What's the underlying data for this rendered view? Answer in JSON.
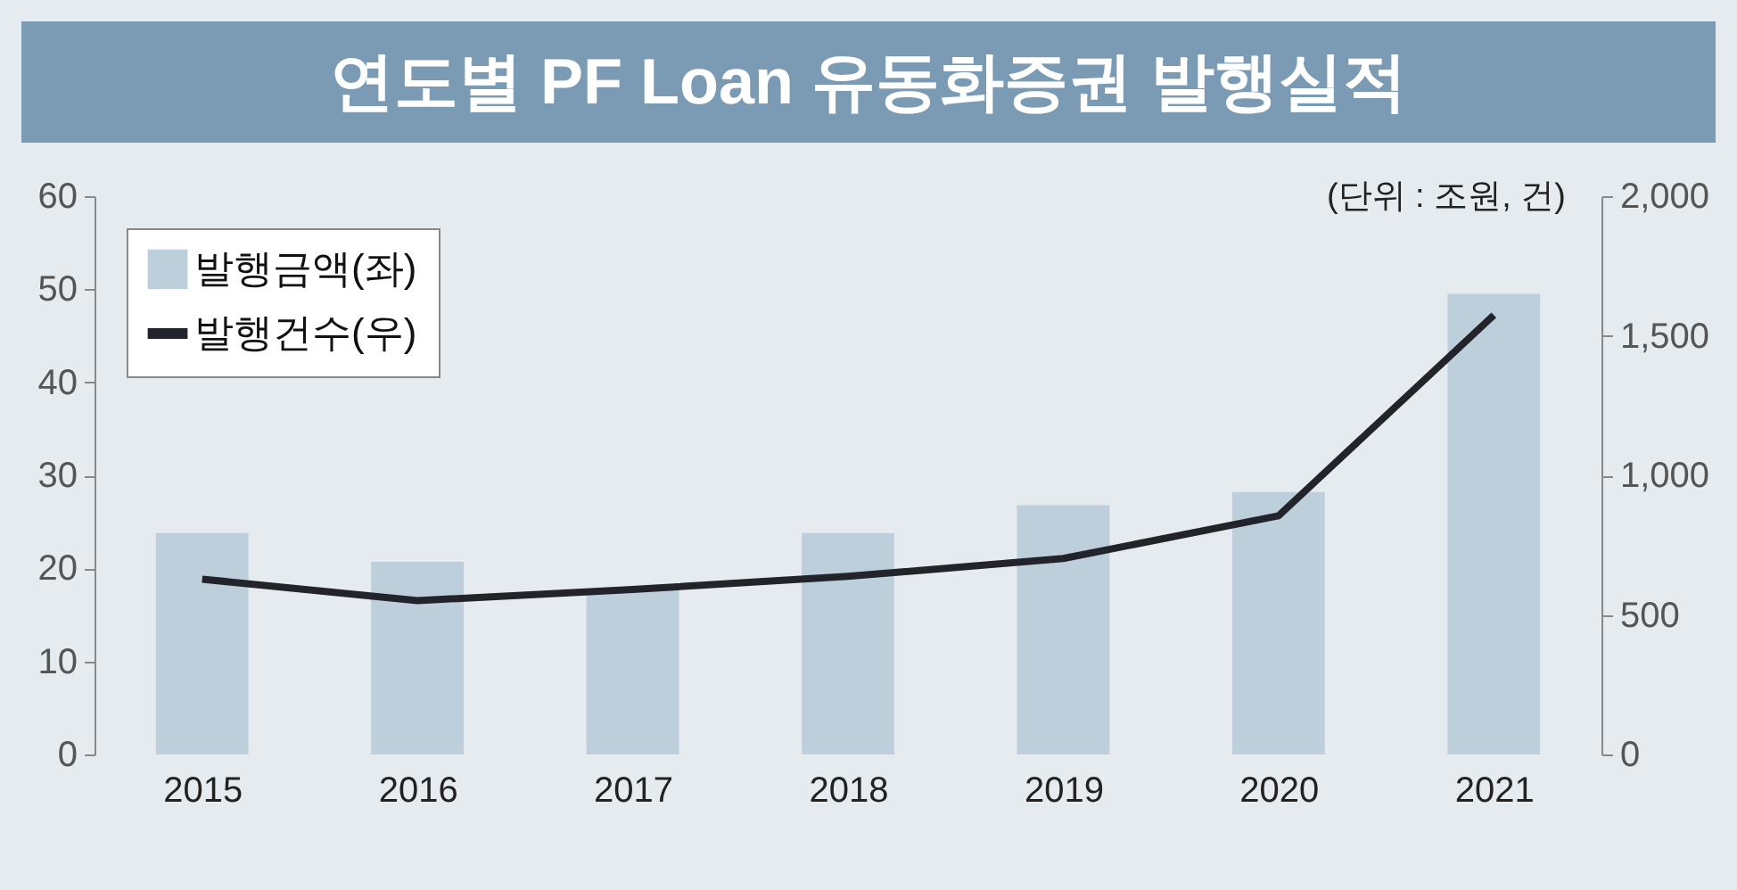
{
  "chart_data": {
    "type": "bar",
    "title": "연도별 PF Loan 유동화증권 발행실적",
    "annotations": [
      "(단위 : 조원, 건)"
    ],
    "categories": [
      "2015",
      "2016",
      "2017",
      "2018",
      "2019",
      "2020",
      "2021"
    ],
    "series": [
      {
        "name": "발행금액(좌)",
        "color": "#bccfda",
        "values": [
          23.8,
          20.7,
          17.7,
          23.8,
          26.8,
          28.2,
          49.5
        ]
      },
      {
        "name": "발행건수(우)",
        "type": "line",
        "axis": "y2",
        "color": "#22232b",
        "values": [
          628,
          551,
          591,
          638,
          702,
          855,
          1574
        ]
      }
    ],
    "ylim": [
      0,
      60
    ],
    "yticks": [
      0,
      10,
      20,
      30,
      40,
      50,
      60
    ],
    "y2lim": [
      0,
      2000
    ],
    "y2ticks": [
      0,
      500,
      {
        "value": 1000,
        "label": "1,000"
      },
      {
        "value": 1500,
        "label": "1,500"
      },
      {
        "value": 2000,
        "label": "2,000"
      }
    ],
    "grid": false,
    "legend": "top left",
    "marker": "none",
    "line_style": "solid"
  }
}
